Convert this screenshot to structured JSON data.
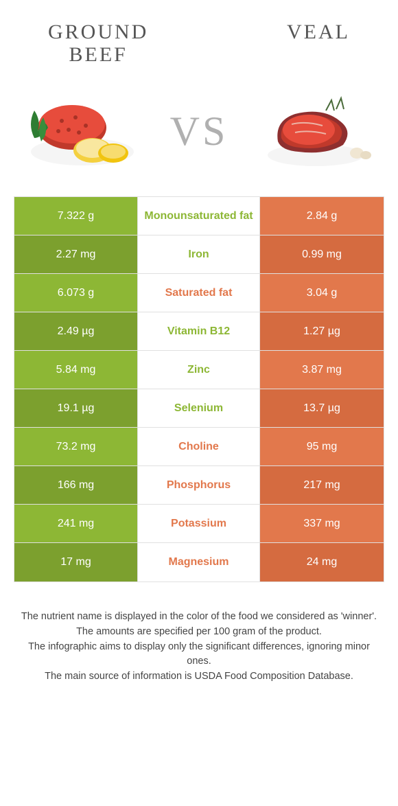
{
  "colors": {
    "green": "#8db735",
    "green_dark": "#7ca02e",
    "orange": "#e2784c",
    "orange_dark": "#d56b40",
    "green_text": "#8db735",
    "orange_text": "#e2784c",
    "border": "#e0e0e0"
  },
  "header": {
    "left_title": "GROUND\nBEEF",
    "right_title": "VEAL",
    "vs": "VS"
  },
  "rows": [
    {
      "left": "7.322 g",
      "label": "Monounsaturated fat",
      "right": "2.84 g",
      "winner": "left",
      "shade": "light"
    },
    {
      "left": "2.27 mg",
      "label": "Iron",
      "right": "0.99 mg",
      "winner": "left",
      "shade": "dark"
    },
    {
      "left": "6.073 g",
      "label": "Saturated fat",
      "right": "3.04 g",
      "winner": "right",
      "shade": "light"
    },
    {
      "left": "2.49 µg",
      "label": "Vitamin B12",
      "right": "1.27 µg",
      "winner": "left",
      "shade": "dark"
    },
    {
      "left": "5.84 mg",
      "label": "Zinc",
      "right": "3.87 mg",
      "winner": "left",
      "shade": "light"
    },
    {
      "left": "19.1 µg",
      "label": "Selenium",
      "right": "13.7 µg",
      "winner": "left",
      "shade": "dark"
    },
    {
      "left": "73.2 mg",
      "label": "Choline",
      "right": "95 mg",
      "winner": "right",
      "shade": "light"
    },
    {
      "left": "166 mg",
      "label": "Phosphorus",
      "right": "217 mg",
      "winner": "right",
      "shade": "dark"
    },
    {
      "left": "241 mg",
      "label": "Potassium",
      "right": "337 mg",
      "winner": "right",
      "shade": "light"
    },
    {
      "left": "17 mg",
      "label": "Magnesium",
      "right": "24 mg",
      "winner": "right",
      "shade": "dark"
    }
  ],
  "footer": {
    "line1": "The nutrient name is displayed in the color of the food we considered as 'winner'.",
    "line2": "The amounts are specified per 100 gram of the product.",
    "line3": "The infographic aims to display only the significant differences, ignoring minor ones.",
    "line4": "The main source of information is USDA Food Composition Database."
  }
}
